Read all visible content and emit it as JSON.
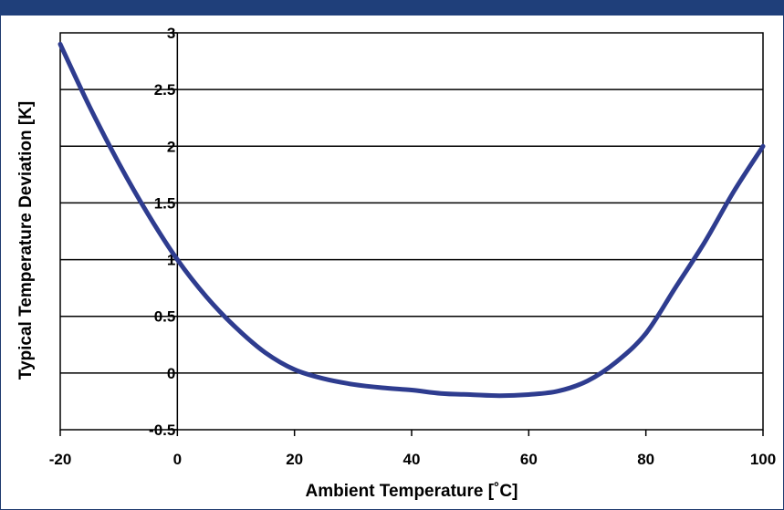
{
  "header": {
    "title": ""
  },
  "chart_data": {
    "type": "line",
    "title": "",
    "xlabel": "Ambient Temperature [˚C]",
    "ylabel": "Typical Temperature Deviation [K]",
    "xlim": [
      -20,
      100
    ],
    "ylim": [
      -0.5,
      3
    ],
    "xticks": [
      "-20",
      "0",
      "20",
      "40",
      "60",
      "80",
      "100"
    ],
    "yticks": [
      "-0.5",
      "0",
      "0.5",
      "1",
      "1.5",
      "2",
      "2.5",
      "3"
    ],
    "grid": "horizontal",
    "series": [
      {
        "color": "#2e3c8f",
        "x": [
          -20,
          -15,
          -10,
          -5,
          0,
          5,
          10,
          15,
          20,
          25,
          30,
          35,
          40,
          45,
          50,
          55,
          60,
          65,
          70,
          75,
          80,
          85,
          90,
          95,
          100
        ],
        "y": [
          2.9,
          2.35,
          1.85,
          1.4,
          1.0,
          0.67,
          0.4,
          0.18,
          0.03,
          -0.05,
          -0.1,
          -0.13,
          -0.15,
          -0.18,
          -0.19,
          -0.2,
          -0.19,
          -0.16,
          -0.07,
          0.1,
          0.35,
          0.75,
          1.15,
          1.6,
          2.0
        ]
      }
    ]
  }
}
